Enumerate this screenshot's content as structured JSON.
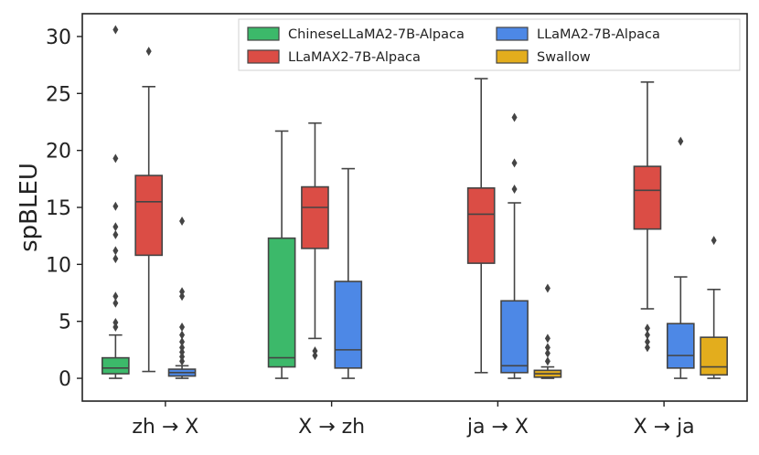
{
  "chart_data": {
    "type": "boxplot",
    "title": "",
    "xlabel": "",
    "ylabel": "spBLEU",
    "ylim": [
      -2,
      32
    ],
    "yticks": [
      0,
      5,
      10,
      15,
      20,
      25,
      30
    ],
    "grid": false,
    "legend_position": "top-right",
    "categories": [
      "zh → X",
      "X → zh",
      "ja → X",
      "X → ja"
    ],
    "series": [
      {
        "name": "ChineseLLaMA2-7B-Alpaca",
        "color": "#3cb96a",
        "boxes": [
          {
            "category": "zh → X",
            "whisker_low": 0,
            "q1": 0.4,
            "median": 0.9,
            "q3": 1.8,
            "whisker_high": 3.8,
            "outliers": [
              4.5,
              4.9,
              6.6,
              7.2,
              10.5,
              11.2,
              12.6,
              13.3,
              15.1,
              19.3,
              30.6
            ]
          },
          {
            "category": "X → zh",
            "whisker_low": 0,
            "q1": 1.0,
            "median": 1.8,
            "q3": 12.3,
            "whisker_high": 21.7,
            "outliers": []
          }
        ]
      },
      {
        "name": "LLaMAX2-7B-Alpaca",
        "color": "#db4d45",
        "boxes": [
          {
            "category": "zh → X",
            "whisker_low": 0.6,
            "q1": 10.8,
            "median": 15.5,
            "q3": 17.8,
            "whisker_high": 25.6,
            "outliers": [
              28.7
            ]
          },
          {
            "category": "X → zh",
            "whisker_low": 3.5,
            "q1": 11.4,
            "median": 15.0,
            "q3": 16.8,
            "whisker_high": 22.4,
            "outliers": [
              2.0,
              2.4
            ]
          },
          {
            "category": "ja → X",
            "whisker_low": 0.5,
            "q1": 10.1,
            "median": 14.4,
            "q3": 16.7,
            "whisker_high": 26.3,
            "outliers": []
          },
          {
            "category": "X → ja",
            "whisker_low": 6.1,
            "q1": 13.1,
            "median": 16.5,
            "q3": 18.6,
            "whisker_high": 26.0,
            "outliers": [
              2.7,
              3.2,
              3.8,
              4.4
            ]
          }
        ]
      },
      {
        "name": "LLaMA2-7B-Alpaca",
        "color": "#4d88e6",
        "boxes": [
          {
            "category": "zh → X",
            "whisker_low": 0,
            "q1": 0.2,
            "median": 0.5,
            "q3": 0.8,
            "whisker_high": 1.1,
            "outliers": [
              1.5,
              1.9,
              2.3,
              2.7,
              3.2,
              3.8,
              4.5,
              7.2,
              7.6,
              13.8
            ]
          },
          {
            "category": "X → zh",
            "whisker_low": 0,
            "q1": 0.9,
            "median": 2.5,
            "q3": 8.5,
            "whisker_high": 18.4,
            "outliers": []
          },
          {
            "category": "ja → X",
            "whisker_low": 0,
            "q1": 0.5,
            "median": 1.1,
            "q3": 6.8,
            "whisker_high": 15.4,
            "outliers": [
              16.6,
              18.9,
              22.9
            ]
          },
          {
            "category": "X → ja",
            "whisker_low": 0,
            "q1": 0.9,
            "median": 2.0,
            "q3": 4.8,
            "whisker_high": 8.9,
            "outliers": [
              20.8
            ]
          }
        ]
      },
      {
        "name": "Swallow",
        "color": "#e3ad1d",
        "boxes": [
          {
            "category": "ja → X",
            "whisker_low": 0,
            "q1": 0.1,
            "median": 0.4,
            "q3": 0.7,
            "whisker_high": 1.0,
            "outliers": [
              1.5,
              2.2,
              2.7,
              3.5,
              7.9
            ]
          },
          {
            "category": "X → ja",
            "whisker_low": 0,
            "q1": 0.3,
            "median": 1.0,
            "q3": 3.6,
            "whisker_high": 7.8,
            "outliers": [
              12.1
            ]
          }
        ]
      }
    ]
  }
}
